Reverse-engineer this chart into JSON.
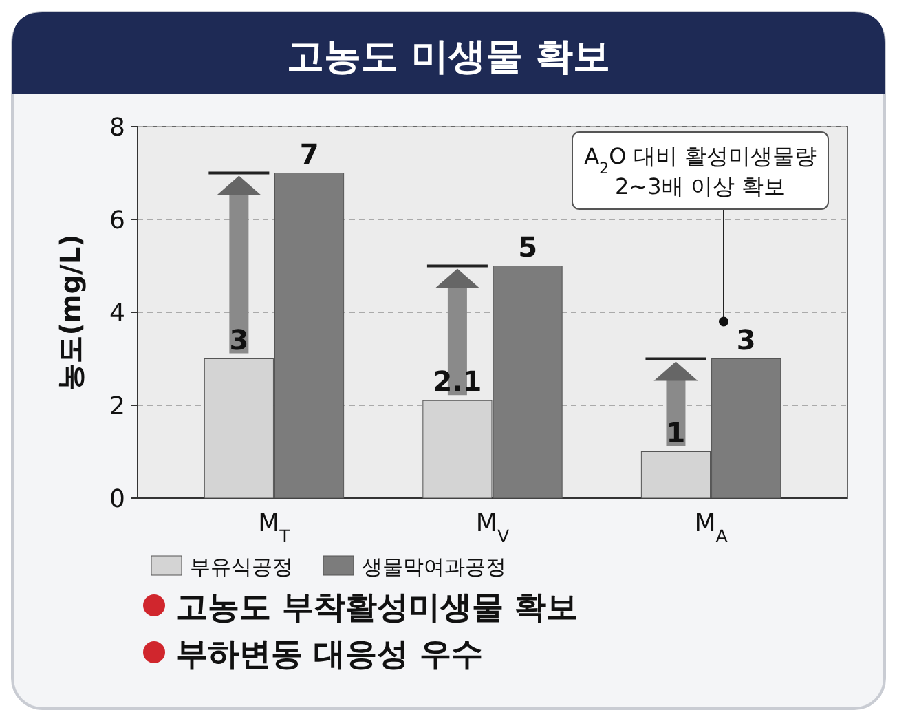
{
  "chart_data": {
    "type": "bar",
    "title": "고농도 미생물 확보",
    "ylabel": "농도(mg/L)",
    "categories": [
      "M$_{T}$",
      "M$_{V}$",
      "M$_{A}$"
    ],
    "series": [
      {
        "name": "부유식공정",
        "color": "#d4d4d4",
        "values": [
          3,
          2.1,
          1
        ]
      },
      {
        "name": "생물막여과공정",
        "color": "#7c7c7c",
        "values": [
          7,
          5,
          3
        ]
      }
    ],
    "ylim": [
      0,
      8
    ],
    "yticks": [
      0,
      2,
      4,
      6,
      8
    ],
    "grid": "y",
    "legend": "bottom",
    "data_labels": true,
    "annotations": [
      "A$_{2}$O 대비 활성미생물량 2~3배 이상 확보",
      "고농도 부착활성미생물 확보",
      "부하변동 대응성 우수"
    ]
  }
}
